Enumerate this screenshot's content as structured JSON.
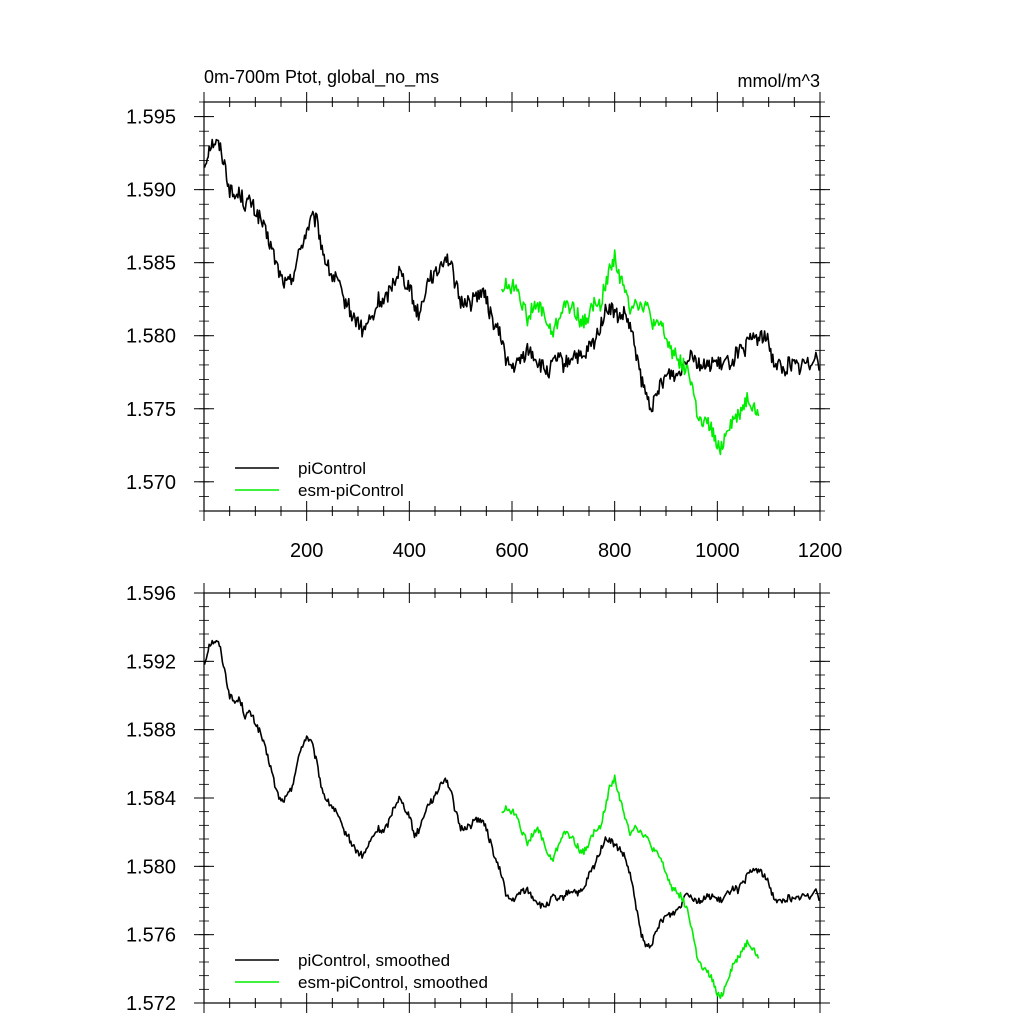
{
  "colors": {
    "piControl": "#000000",
    "esm_piControl": "#00ee00",
    "frame": "#000000"
  },
  "chart_data": [
    {
      "type": "line",
      "title": "0m-700m Ptot, global_no_ms",
      "units": "mmol/m^3",
      "xlim": [
        0,
        1200
      ],
      "ylim": [
        1.568,
        1.596
      ],
      "xticks": [
        200,
        400,
        600,
        800,
        1000,
        1200
      ],
      "xtick_labels": [
        "200",
        "400",
        "600",
        "800",
        "1000",
        "1200"
      ],
      "yticks": [
        1.57,
        1.575,
        1.58,
        1.585,
        1.59,
        1.595
      ],
      "ytick_labels": [
        "1.570",
        "1.575",
        "1.580",
        "1.585",
        "1.590",
        "1.595"
      ],
      "legend_position": "bottom-left",
      "series": [
        {
          "name": "piControl",
          "color": "#000000",
          "x": [
            1,
            10,
            20,
            30,
            40,
            50,
            60,
            70,
            80,
            90,
            100,
            110,
            120,
            130,
            140,
            150,
            160,
            170,
            180,
            190,
            200,
            210,
            220,
            230,
            240,
            250,
            260,
            270,
            280,
            290,
            300,
            310,
            320,
            330,
            340,
            350,
            360,
            370,
            380,
            390,
            400,
            410,
            420,
            430,
            440,
            450,
            460,
            470,
            480,
            490,
            500,
            510,
            520,
            530,
            540,
            550,
            560,
            570,
            580,
            590,
            600,
            610,
            620,
            630,
            640,
            650,
            660,
            670,
            680,
            690,
            700,
            710,
            720,
            730,
            740,
            750,
            760,
            770,
            780,
            790,
            800,
            810,
            820,
            830,
            840,
            850,
            860,
            870,
            880,
            890,
            900,
            910,
            920,
            930,
            940,
            950,
            960,
            970,
            980,
            990,
            1000,
            1010,
            1020,
            1030,
            1040,
            1050,
            1060,
            1070,
            1080,
            1090,
            1100,
            1110,
            1120,
            1130,
            1140,
            1150,
            1160,
            1170,
            1180,
            1190,
            1200
          ],
          "y": [
            1.5915,
            1.593,
            1.5933,
            1.593,
            1.5918,
            1.59,
            1.5895,
            1.5898,
            1.589,
            1.5892,
            1.5885,
            1.588,
            1.587,
            1.5862,
            1.585,
            1.584,
            1.5835,
            1.5838,
            1.585,
            1.5862,
            1.5872,
            1.588,
            1.5878,
            1.586,
            1.5848,
            1.584,
            1.5838,
            1.5825,
            1.5822,
            1.5812,
            1.581,
            1.5802,
            1.581,
            1.5812,
            1.5825,
            1.5822,
            1.583,
            1.5838,
            1.5845,
            1.5838,
            1.5835,
            1.582,
            1.5815,
            1.583,
            1.5842,
            1.584,
            1.5848,
            1.5855,
            1.585,
            1.5835,
            1.5822,
            1.5825,
            1.5822,
            1.5828,
            1.583,
            1.5825,
            1.5812,
            1.5805,
            1.5798,
            1.5782,
            1.5778,
            1.578,
            1.5785,
            1.579,
            1.5788,
            1.5782,
            1.5778,
            1.5775,
            1.578,
            1.5785,
            1.578,
            1.5782,
            1.5788,
            1.5785,
            1.5783,
            1.5792,
            1.5795,
            1.5805,
            1.5815,
            1.582,
            1.5815,
            1.5812,
            1.5815,
            1.5805,
            1.5792,
            1.5772,
            1.576,
            1.5752,
            1.5755,
            1.5768,
            1.5772,
            1.5775,
            1.5772,
            1.5778,
            1.5785,
            1.579,
            1.5782,
            1.578,
            1.5778,
            1.5783,
            1.578,
            1.578,
            1.5782,
            1.5783,
            1.579,
            1.5788,
            1.5795,
            1.58,
            1.5798,
            1.58,
            1.5795,
            1.5782,
            1.578,
            1.5775,
            1.5782,
            1.578,
            1.5778,
            1.5782,
            1.578,
            1.579,
            1.5778
          ]
        },
        {
          "name": "esm-piControl",
          "color": "#00ee00",
          "x": [
            580,
            590,
            600,
            610,
            620,
            630,
            640,
            650,
            660,
            670,
            680,
            690,
            700,
            710,
            720,
            730,
            740,
            750,
            760,
            770,
            780,
            790,
            800,
            810,
            820,
            830,
            840,
            850,
            860,
            870,
            880,
            890,
            900,
            910,
            920,
            930,
            940,
            950,
            960,
            970,
            980,
            990,
            1000,
            1010,
            1020,
            1030,
            1040,
            1050,
            1060,
            1070,
            1080
          ],
          "y": [
            1.5832,
            1.5835,
            1.5833,
            1.5835,
            1.5822,
            1.5812,
            1.5818,
            1.582,
            1.5818,
            1.5805,
            1.5802,
            1.581,
            1.5822,
            1.5818,
            1.582,
            1.5812,
            1.5808,
            1.5815,
            1.5822,
            1.582,
            1.5832,
            1.5845,
            1.5855,
            1.584,
            1.583,
            1.582,
            1.5825,
            1.582,
            1.5822,
            1.5812,
            1.5805,
            1.5808,
            1.5798,
            1.579,
            1.5788,
            1.578,
            1.5778,
            1.5768,
            1.5748,
            1.5738,
            1.574,
            1.5735,
            1.5722,
            1.5725,
            1.5738,
            1.5742,
            1.5745,
            1.5752,
            1.5758,
            1.5752,
            1.5745
          ]
        }
      ]
    },
    {
      "type": "line",
      "xlim": [
        0,
        1200
      ],
      "ylim": [
        1.572,
        1.596
      ],
      "xticks": [
        200,
        400,
        600,
        800,
        1000,
        1200
      ],
      "xtick_labels": [],
      "yticks": [
        1.572,
        1.576,
        1.58,
        1.584,
        1.588,
        1.592,
        1.596
      ],
      "ytick_labels": [
        "1.572",
        "1.576",
        "1.580",
        "1.584",
        "1.588",
        "1.592",
        "1.596"
      ],
      "legend_position": "bottom-left",
      "series": [
        {
          "name": "piControl, smoothed",
          "color": "#000000",
          "x": [
            1,
            10,
            20,
            30,
            40,
            50,
            60,
            70,
            80,
            90,
            100,
            110,
            120,
            130,
            140,
            150,
            160,
            170,
            180,
            190,
            200,
            210,
            220,
            230,
            240,
            250,
            260,
            270,
            280,
            290,
            300,
            310,
            320,
            330,
            340,
            350,
            360,
            370,
            380,
            390,
            400,
            410,
            420,
            430,
            440,
            450,
            460,
            470,
            480,
            490,
            500,
            510,
            520,
            530,
            540,
            550,
            560,
            570,
            580,
            590,
            600,
            610,
            620,
            630,
            640,
            650,
            660,
            670,
            680,
            690,
            700,
            710,
            720,
            730,
            740,
            750,
            760,
            770,
            780,
            790,
            800,
            810,
            820,
            830,
            840,
            850,
            860,
            870,
            880,
            890,
            900,
            910,
            920,
            930,
            940,
            950,
            960,
            970,
            980,
            990,
            1000,
            1010,
            1020,
            1030,
            1040,
            1050,
            1060,
            1070,
            1080,
            1090,
            1100,
            1110,
            1120,
            1130,
            1140,
            1150,
            1160,
            1170,
            1180,
            1190,
            1200
          ],
          "y": [
            1.5918,
            1.593,
            1.5932,
            1.593,
            1.5915,
            1.59,
            1.5896,
            1.5898,
            1.5888,
            1.589,
            1.5884,
            1.5878,
            1.5868,
            1.5858,
            1.5845,
            1.5838,
            1.584,
            1.5845,
            1.5858,
            1.587,
            1.5876,
            1.5872,
            1.586,
            1.5845,
            1.5838,
            1.5835,
            1.583,
            1.5822,
            1.5818,
            1.5812,
            1.5808,
            1.5806,
            1.5812,
            1.5818,
            1.5822,
            1.582,
            1.5826,
            1.5835,
            1.584,
            1.5835,
            1.583,
            1.5818,
            1.5822,
            1.5832,
            1.5838,
            1.584,
            1.5848,
            1.5852,
            1.5845,
            1.5832,
            1.5822,
            1.5823,
            1.5824,
            1.5828,
            1.5827,
            1.5822,
            1.5812,
            1.5802,
            1.5795,
            1.5782,
            1.578,
            1.5782,
            1.5786,
            1.5786,
            1.5782,
            1.5779,
            1.5776,
            1.5778,
            1.5782,
            1.578,
            1.5782,
            1.5785,
            1.5786,
            1.5784,
            1.5786,
            1.5795,
            1.58,
            1.5808,
            1.5815,
            1.5816,
            1.5812,
            1.581,
            1.5805,
            1.5795,
            1.578,
            1.5762,
            1.5753,
            1.5754,
            1.576,
            1.5768,
            1.5771,
            1.5772,
            1.5774,
            1.5778,
            1.5786,
            1.5782,
            1.578,
            1.578,
            1.5782,
            1.5783,
            1.578,
            1.578,
            1.5784,
            1.5788,
            1.5786,
            1.579,
            1.5795,
            1.5798,
            1.5798,
            1.5795,
            1.579,
            1.5782,
            1.5779,
            1.578,
            1.5782,
            1.578,
            1.5782,
            1.5783,
            1.5782,
            1.5788,
            1.578
          ]
        },
        {
          "name": "esm-piControl, smoothed",
          "color": "#00ee00",
          "x": [
            580,
            590,
            600,
            610,
            620,
            630,
            640,
            650,
            660,
            670,
            680,
            690,
            700,
            710,
            720,
            730,
            740,
            750,
            760,
            770,
            780,
            790,
            800,
            810,
            820,
            830,
            840,
            850,
            860,
            870,
            880,
            890,
            900,
            910,
            920,
            930,
            940,
            950,
            960,
            970,
            980,
            990,
            1000,
            1010,
            1020,
            1030,
            1040,
            1050,
            1060,
            1070,
            1080
          ],
          "y": [
            1.5832,
            1.5834,
            1.5832,
            1.583,
            1.582,
            1.5814,
            1.5818,
            1.5822,
            1.5816,
            1.5806,
            1.5804,
            1.5812,
            1.582,
            1.5818,
            1.5816,
            1.581,
            1.5808,
            1.5814,
            1.582,
            1.5822,
            1.5832,
            1.5846,
            1.5852,
            1.584,
            1.5828,
            1.582,
            1.5824,
            1.582,
            1.5818,
            1.5812,
            1.5808,
            1.5804,
            1.5796,
            1.5788,
            1.5786,
            1.5782,
            1.5776,
            1.5764,
            1.5748,
            1.574,
            1.5738,
            1.5734,
            1.5724,
            1.5725,
            1.5734,
            1.5742,
            1.5746,
            1.5752,
            1.5756,
            1.5752,
            1.5746
          ]
        }
      ]
    }
  ]
}
